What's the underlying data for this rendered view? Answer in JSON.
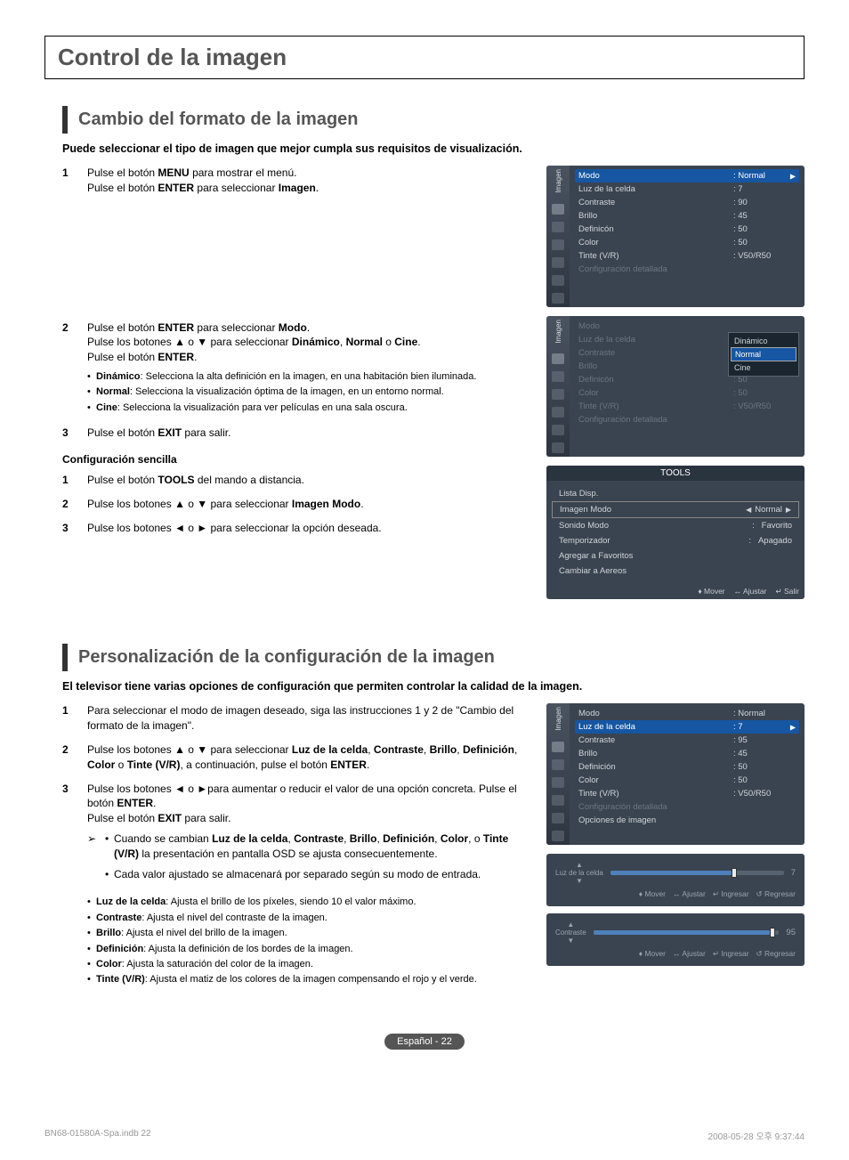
{
  "page_title": "Control de la imagen",
  "section1": {
    "heading": "Cambio del formato de la imagen",
    "intro": "Puede seleccionar el tipo de imagen que mejor cumpla sus requisitos de visualización.",
    "step1_a": "Pulse el botón ",
    "step1_b": "MENU",
    "step1_c": " para mostrar el menú.",
    "step1_d": "Pulse el botón ",
    "step1_e": "ENTER",
    "step1_f": " para seleccionar ",
    "step1_g": "Imagen",
    "step1_h": ".",
    "step2_a": "Pulse el botón ",
    "step2_b": "ENTER",
    "step2_c": " para seleccionar ",
    "step2_d": "Modo",
    "step2_e": ".",
    "step2_f": "Pulse los botones ▲ o ▼ para seleccionar ",
    "step2_g": "Dinámico",
    "step2_h": ", ",
    "step2_i": "Normal",
    "step2_j": " o ",
    "step2_k": "Cine",
    "step2_l": ".",
    "step2_m": "Pulse el botón ",
    "step2_n": "ENTER",
    "step2_o": ".",
    "sub1": "Dinámico: Selecciona la alta definición en la imagen, en una habitación bien iluminada.",
    "sub2": "Normal: Selecciona la visualización óptima de la imagen, en un entorno normal.",
    "sub3": "Cine: Selecciona la visualización para ver películas en una sala oscura.",
    "step3_a": "Pulse el botón ",
    "step3_b": "EXIT",
    "step3_c": " para salir.",
    "subhead": "Configuración sencilla",
    "cs1_a": "Pulse el botón ",
    "cs1_b": "TOOLS",
    "cs1_c": " del mando a distancia.",
    "cs2": "Pulse los botones ▲ o ▼ para seleccionar Imagen Modo.",
    "cs3": "Pulse los botones ◄ o ► para seleccionar la opción deseada."
  },
  "osd1": {
    "side": "Imagen",
    "rows": [
      {
        "k": "Modo",
        "v": ": Normal",
        "hl": true
      },
      {
        "k": "Luz de la celda",
        "v": ": 7"
      },
      {
        "k": "Contraste",
        "v": ": 90"
      },
      {
        "k": "Brillo",
        "v": ": 45"
      },
      {
        "k": "Definicón",
        "v": ": 50"
      },
      {
        "k": "Color",
        "v": ": 50"
      },
      {
        "k": "Tinte (V/R)",
        "v": ": V50/R50"
      },
      {
        "k": "Configuración detallada",
        "v": "",
        "dim": true
      }
    ]
  },
  "osd2": {
    "side": "Imagen",
    "rows": [
      {
        "k": "Modo",
        "v": "",
        "dim": true
      },
      {
        "k": "Luz de la celda",
        "v": "",
        "dim": true
      },
      {
        "k": "Contraste",
        "v": "",
        "dim": true
      },
      {
        "k": "Brillo",
        "v": ": 45",
        "dim": true
      },
      {
        "k": "Definicón",
        "v": ": 50",
        "dim": true
      },
      {
        "k": "Color",
        "v": ": 50",
        "dim": true
      },
      {
        "k": "Tinte (V/R)",
        "v": ": V50/R50",
        "dim": true
      },
      {
        "k": "Configuración detallada",
        "v": "",
        "dim": true
      }
    ],
    "popup": [
      "Dinámico",
      "Normal",
      "Cine"
    ],
    "popup_sel": 1
  },
  "tools": {
    "title": "TOOLS",
    "rows": [
      {
        "k": "Lista Disp.",
        "v": ""
      },
      {
        "k": "Imagen Modo",
        "v": "Normal",
        "hl": true
      },
      {
        "k": "Sonido Modo",
        "v": "Favorito"
      },
      {
        "k": "Temporizador",
        "v": "Apagado"
      },
      {
        "k": "Agregar a Favoritos",
        "v": ""
      },
      {
        "k": "Cambiar a Aereos",
        "v": ""
      }
    ],
    "foot": [
      "♦ Mover",
      "↔ Ajustar",
      "↵ Salir"
    ]
  },
  "section2": {
    "heading": "Personalización de la configuración de la imagen",
    "intro": "El televisor tiene varias opciones de configuración que permiten controlar la calidad de la imagen.",
    "step1": "Para seleccionar el modo de imagen deseado, siga las instrucciones 1 y 2 de \"Cambio del formato de la imagen\".",
    "step2_a": "Pulse los botones ▲ o ▼ para seleccionar ",
    "step2_parts": [
      "Luz de la celda",
      ", ",
      "Contraste",
      ", ",
      "Brillo",
      ", ",
      "Definición",
      ", ",
      "Color",
      " o ",
      "Tinte (V/R)",
      ", a continuación, pulse el botón ",
      "ENTER",
      "."
    ],
    "step3_a": "Pulse los botones ◄ o ►para aumentar o reducir el valor de una opción concreta. Pulse el botón ",
    "step3_b": "ENTER",
    "step3_c": ".",
    "step3_d": "Pulse el botón ",
    "step3_e": "EXIT",
    "step3_f": " para salir.",
    "note1_a": "Cuando se cambian ",
    "note1_parts": [
      "Luz de la celda",
      ", ",
      "Contraste",
      ", ",
      "Brillo",
      ", ",
      "Definición",
      ", ",
      "Color",
      ", o ",
      "Tinte (V/R)",
      " la presentación en pantalla OSD se ajusta consecuentemente."
    ],
    "note2": "Cada valor ajustado se almacenará por separado según su modo de entrada.",
    "defs": [
      [
        "Luz de la celda",
        ": Ajusta el brillo de los píxeles, siendo 10 el valor máximo."
      ],
      [
        "Contraste",
        ": Ajusta el nivel del contraste de la imagen."
      ],
      [
        "Brillo",
        ": Ajusta el nivel del brillo de la imagen."
      ],
      [
        "Definición",
        ": Ajusta la definición de los bordes de la imagen."
      ],
      [
        "Color",
        ": Ajusta la saturación del color de la imagen."
      ],
      [
        "Tinte (V/R)",
        ": Ajusta el matiz de los colores de la imagen compensando el rojo y el verde."
      ]
    ]
  },
  "osd3": {
    "side": "Imagen",
    "rows": [
      {
        "k": "Modo",
        "v": ": Normal"
      },
      {
        "k": "Luz de la celda",
        "v": ": 7",
        "hl": true
      },
      {
        "k": "Contraste",
        "v": ": 95"
      },
      {
        "k": "Brillo",
        "v": ": 45"
      },
      {
        "k": "Definición",
        "v": ": 50"
      },
      {
        "k": "Color",
        "v": ": 50"
      },
      {
        "k": "Tinte (V/R)",
        "v": ": V50/R50"
      },
      {
        "k": "Configuración detallada",
        "v": "",
        "dim": true
      },
      {
        "k": "Opciones de imagen",
        "v": ""
      }
    ]
  },
  "slider1": {
    "label": "Luz de la celda",
    "value": "7",
    "pct": 70,
    "foot": [
      "♦ Mover",
      "↔ Ajustar",
      "↵ Ingresar",
      "↺ Regresar"
    ]
  },
  "slider2": {
    "label": "Contraste",
    "value": "95",
    "pct": 95,
    "foot": [
      "♦ Mover",
      "↔ Ajustar",
      "↵ Ingresar",
      "↺ Regresar"
    ]
  },
  "page_badge": "Español - 22",
  "doc_footer_left": "BN68-01580A-Spa.indb   22",
  "doc_footer_right": "2008-05-28   오후 9:37:44",
  "colors": {
    "osd_bg": "#3a4450",
    "osd_hl": "#1656a3",
    "text_muted": "#6b7580",
    "badge_bg": "#555555",
    "heading": "#555555",
    "slider_fill": "#4e80bb"
  }
}
